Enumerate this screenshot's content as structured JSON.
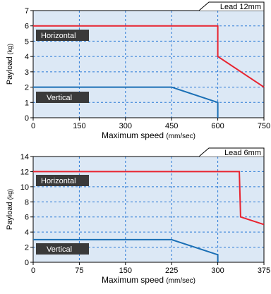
{
  "chart_data": [
    {
      "type": "line",
      "title": "Lead 12mm",
      "xlabel": "Maximum speed",
      "xlabel_unit": "(mm/sec)",
      "ylabel": "Payload",
      "ylabel_unit": "(kg)",
      "xlim": [
        0,
        750
      ],
      "ylim": [
        0,
        7
      ],
      "x_ticks": [
        "0",
        "150",
        "300",
        "450",
        "600",
        "750"
      ],
      "y_ticks": [
        "0",
        "1",
        "2",
        "3",
        "4",
        "5",
        "6",
        "7"
      ],
      "grid": true,
      "background_color": "#dce8f5",
      "series": [
        {
          "name": "Horizontal",
          "color": "#e8232f",
          "points": [
            [
              0,
              6
            ],
            [
              600,
              6
            ],
            [
              600,
              4
            ],
            [
              750,
              2
            ]
          ]
        },
        {
          "name": "Vertical",
          "color": "#1a6fb5",
          "points": [
            [
              0,
              2
            ],
            [
              450,
              2
            ],
            [
              600,
              1
            ],
            [
              600,
              0
            ]
          ]
        }
      ]
    },
    {
      "type": "line",
      "title": "Lead 6mm",
      "xlabel": "Maximum speed",
      "xlabel_unit": "(mm/sec)",
      "ylabel": "Payload",
      "ylabel_unit": "(kg)",
      "xlim": [
        0,
        375
      ],
      "ylim": [
        0,
        14
      ],
      "x_ticks": [
        "0",
        "75",
        "150",
        "225",
        "300",
        "375"
      ],
      "y_ticks": [
        "0",
        "2",
        "4",
        "6",
        "8",
        "10",
        "12",
        "14"
      ],
      "grid": true,
      "background_color": "#dce8f5",
      "series": [
        {
          "name": "Horizontal",
          "color": "#e8232f",
          "points": [
            [
              0,
              12
            ],
            [
              335,
              12
            ],
            [
              337,
              6
            ],
            [
              375,
              5
            ]
          ]
        },
        {
          "name": "Vertical",
          "color": "#1a6fb5",
          "points": [
            [
              0,
              3
            ],
            [
              225,
              3
            ],
            [
              300,
              1
            ],
            [
              300,
              0
            ]
          ]
        }
      ]
    }
  ]
}
